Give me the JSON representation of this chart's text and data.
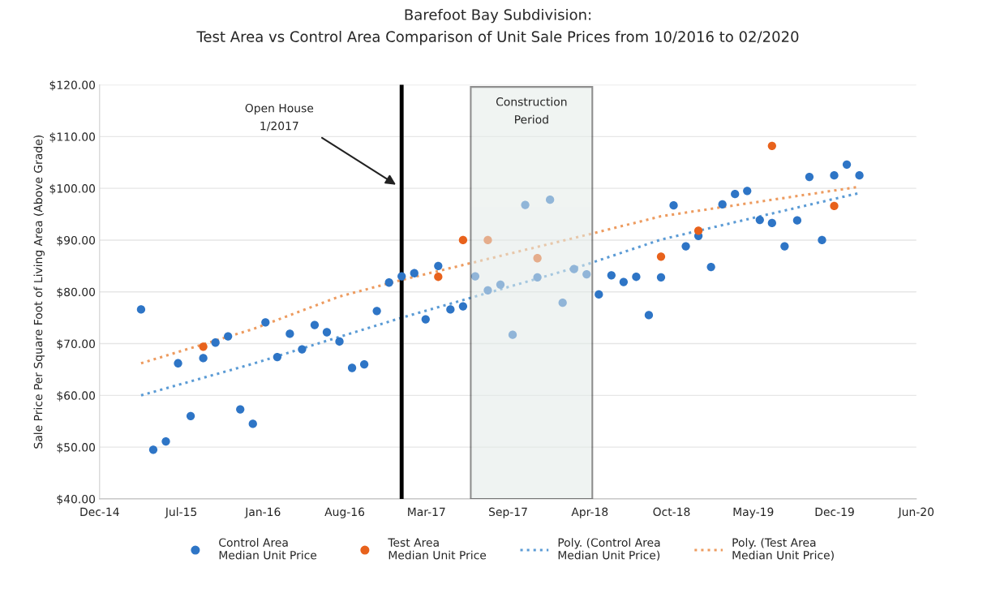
{
  "chart_data": {
    "type": "scatter",
    "title": "Barefoot Bay Subdivision:\nTest Area vs Control Area Comparison of Unit Sale Prices from 10/2016 to 02/2020",
    "ylabel": "Sale Price Per Square Foot of Living Area (Above Grade)",
    "series": [
      {
        "name": "Control Area\nMedian Unit Price",
        "color": "#2e75c6",
        "marker": "circle",
        "x": [
          "2015-04",
          "2015-05",
          "2015-06",
          "2015-07",
          "2015-08",
          "2015-09",
          "2015-10",
          "2015-11",
          "2015-12",
          "2016-01",
          "2016-02",
          "2016-03",
          "2016-04",
          "2016-05",
          "2016-06",
          "2016-07",
          "2016-08",
          "2016-09",
          "2016-10",
          "2016-11",
          "2016-12",
          "2017-01",
          "2017-02",
          "2017-03",
          "2017-04",
          "2017-05",
          "2017-06",
          "2017-07",
          "2017-08",
          "2017-09",
          "2017-10",
          "2017-11",
          "2017-12",
          "2018-01",
          "2018-02",
          "2018-03",
          "2018-04",
          "2018-05",
          "2018-06",
          "2018-07",
          "2018-08",
          "2018-09",
          "2018-10",
          "2018-11",
          "2018-12",
          "2019-01",
          "2019-02",
          "2019-03",
          "2019-04",
          "2019-05",
          "2019-06",
          "2019-07",
          "2019-08",
          "2019-09",
          "2019-10",
          "2019-11",
          "2019-12",
          "2020-01",
          "2020-02"
        ],
        "values": [
          76.6,
          49.5,
          51.1,
          66.2,
          56.0,
          67.2,
          70.2,
          71.4,
          57.3,
          54.5,
          74.1,
          67.4,
          71.9,
          68.9,
          73.6,
          72.2,
          70.4,
          65.3,
          66.0,
          76.3,
          81.8,
          83.0,
          83.6,
          74.7,
          85.0,
          76.6,
          77.2,
          83.0,
          80.3,
          81.4,
          71.7,
          96.8,
          82.8,
          97.8,
          77.9,
          84.4,
          83.4,
          79.5,
          83.2,
          81.9,
          82.9,
          75.5,
          82.8,
          96.7,
          88.8,
          90.8,
          84.8,
          96.9,
          98.9,
          99.5,
          93.9,
          93.3,
          88.8,
          93.8,
          102.2,
          90.0,
          102.5,
          104.6,
          102.5
        ]
      },
      {
        "name": "Test Area\nMedian Unit Price",
        "color": "#e8621c",
        "marker": "circle",
        "x": [
          "2015-09",
          "2017-04",
          "2017-06",
          "2017-08",
          "2017-12",
          "2018-10",
          "2019-01",
          "2019-07",
          "2019-12"
        ],
        "values": [
          69.4,
          82.9,
          90.0,
          90.0,
          86.5,
          86.8,
          91.8,
          108.2,
          96.6
        ]
      },
      {
        "name": "Poly. (Control Area\nMedian Unit Price)",
        "type": "line",
        "color": "#5b9bd5",
        "line_style": "dotted",
        "marker": "none",
        "x": [
          "2015-04",
          "2016-01",
          "2016-08",
          "2017-01",
          "2018-04",
          "2018-10",
          "2020-02"
        ],
        "values": [
          60.0,
          66.1,
          71.3,
          75.0,
          85.3,
          90.1,
          99.1
        ]
      },
      {
        "name": "Poly. (Test Area\nMedian Unit Price)",
        "type": "line",
        "color": "#ed9b5f",
        "line_style": "dotted",
        "marker": "none",
        "x": [
          "2015-04",
          "2016-01",
          "2016-08",
          "2017-01",
          "2018-04",
          "2018-10",
          "2020-02"
        ],
        "values": [
          66.2,
          72.8,
          79.1,
          82.3,
          91.0,
          94.6,
          100.3
        ]
      }
    ],
    "xlim": [
      "2014-12-20",
      "2020-06-20"
    ],
    "xticks": [
      {
        "value": "2014-12-20",
        "label": "Dec-14"
      },
      {
        "value": "2015-07-09",
        "label": "Jul-15"
      },
      {
        "value": "2016-01-26",
        "label": "Jan-16"
      },
      {
        "value": "2016-08-14",
        "label": "Aug-16"
      },
      {
        "value": "2017-03-03",
        "label": "Mar-17"
      },
      {
        "value": "2017-09-20",
        "label": "Sep-17"
      },
      {
        "value": "2018-04-09",
        "label": "Apr-18"
      },
      {
        "value": "2018-10-27",
        "label": "Oct-18"
      },
      {
        "value": "2019-05-16",
        "label": "May-19"
      },
      {
        "value": "2019-12-02",
        "label": "Dec-19"
      },
      {
        "value": "2020-06-20",
        "label": "Jun-20"
      }
    ],
    "ylim": [
      40,
      120
    ],
    "yticks": [
      {
        "value": 40,
        "label": "$40.00"
      },
      {
        "value": 50,
        "label": "$50.00"
      },
      {
        "value": 60,
        "label": "$60.00"
      },
      {
        "value": 70,
        "label": "$70.00"
      },
      {
        "value": 80,
        "label": "$80.00"
      },
      {
        "value": 90,
        "label": "$90.00"
      },
      {
        "value": 100,
        "label": "$100.00"
      },
      {
        "value": 110,
        "label": "$110.00"
      },
      {
        "value": 120,
        "label": "$120.00"
      }
    ],
    "grid": "y",
    "legend": "bottom",
    "ref_lines": [
      {
        "axis": "x",
        "value": "2017-01",
        "color": "#000000"
      }
    ],
    "bands": [
      {
        "axis": "x",
        "from": "2017-06-20",
        "to": "2018-04-15",
        "label": "Construction\nPeriod",
        "color": "#e3ebe8"
      }
    ],
    "annotations": [
      "Open House\n1/2017"
    ]
  }
}
